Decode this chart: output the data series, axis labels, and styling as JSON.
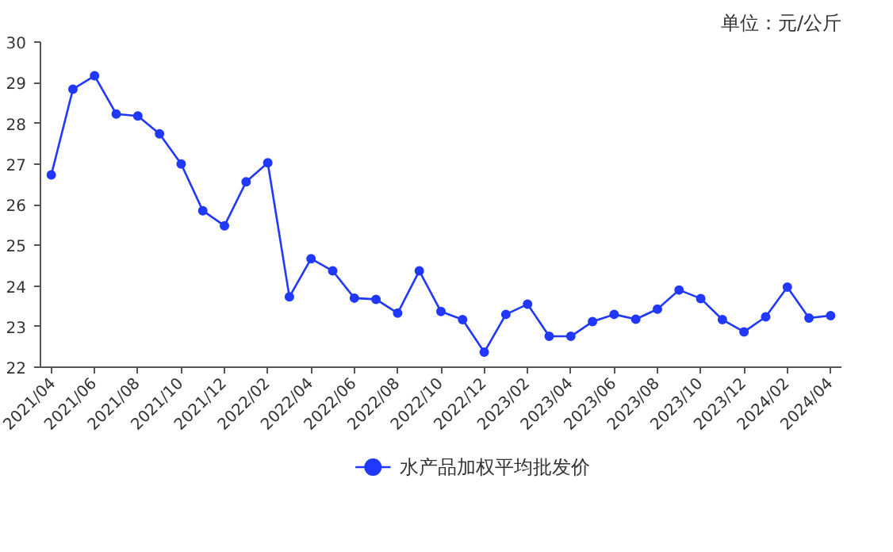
{
  "chart_data": {
    "type": "line",
    "annotations": [
      "单位：元/公斤"
    ],
    "categories": [
      "2021/04",
      null,
      "2021/06",
      null,
      "2021/08",
      null,
      "2021/10",
      null,
      "2021/12",
      null,
      "2022/02",
      null,
      "2022/04",
      null,
      "2022/06",
      null,
      "2022/08",
      null,
      "2022/10",
      null,
      "2022/12",
      null,
      "2023/02",
      null,
      "2023/04",
      null,
      "2023/06",
      null,
      "2023/08",
      null,
      "2023/10",
      null,
      "2023/12",
      null,
      "2024/02",
      null,
      "2024/04"
    ],
    "series": [
      {
        "name": "水产品加权平均批发价",
        "color": "#2038ff",
        "values": [
          26.73,
          28.84,
          29.17,
          28.23,
          28.18,
          27.74,
          27.0,
          25.85,
          25.48,
          26.56,
          27.03,
          23.73,
          24.67,
          24.37,
          23.7,
          23.67,
          23.33,
          24.37,
          23.37,
          23.17,
          22.37,
          23.3,
          23.55,
          22.76,
          22.76,
          23.12,
          23.3,
          23.18,
          23.43,
          23.9,
          23.69,
          23.17,
          22.87,
          23.24,
          23.97,
          23.21,
          23.27
        ]
      }
    ],
    "ylim": [
      22,
      30
    ],
    "yticks": [
      22,
      23,
      24,
      25,
      26,
      27,
      28,
      29,
      30
    ],
    "grid": false,
    "legend": "bottom",
    "marker": "circle",
    "line_style": "solid"
  }
}
